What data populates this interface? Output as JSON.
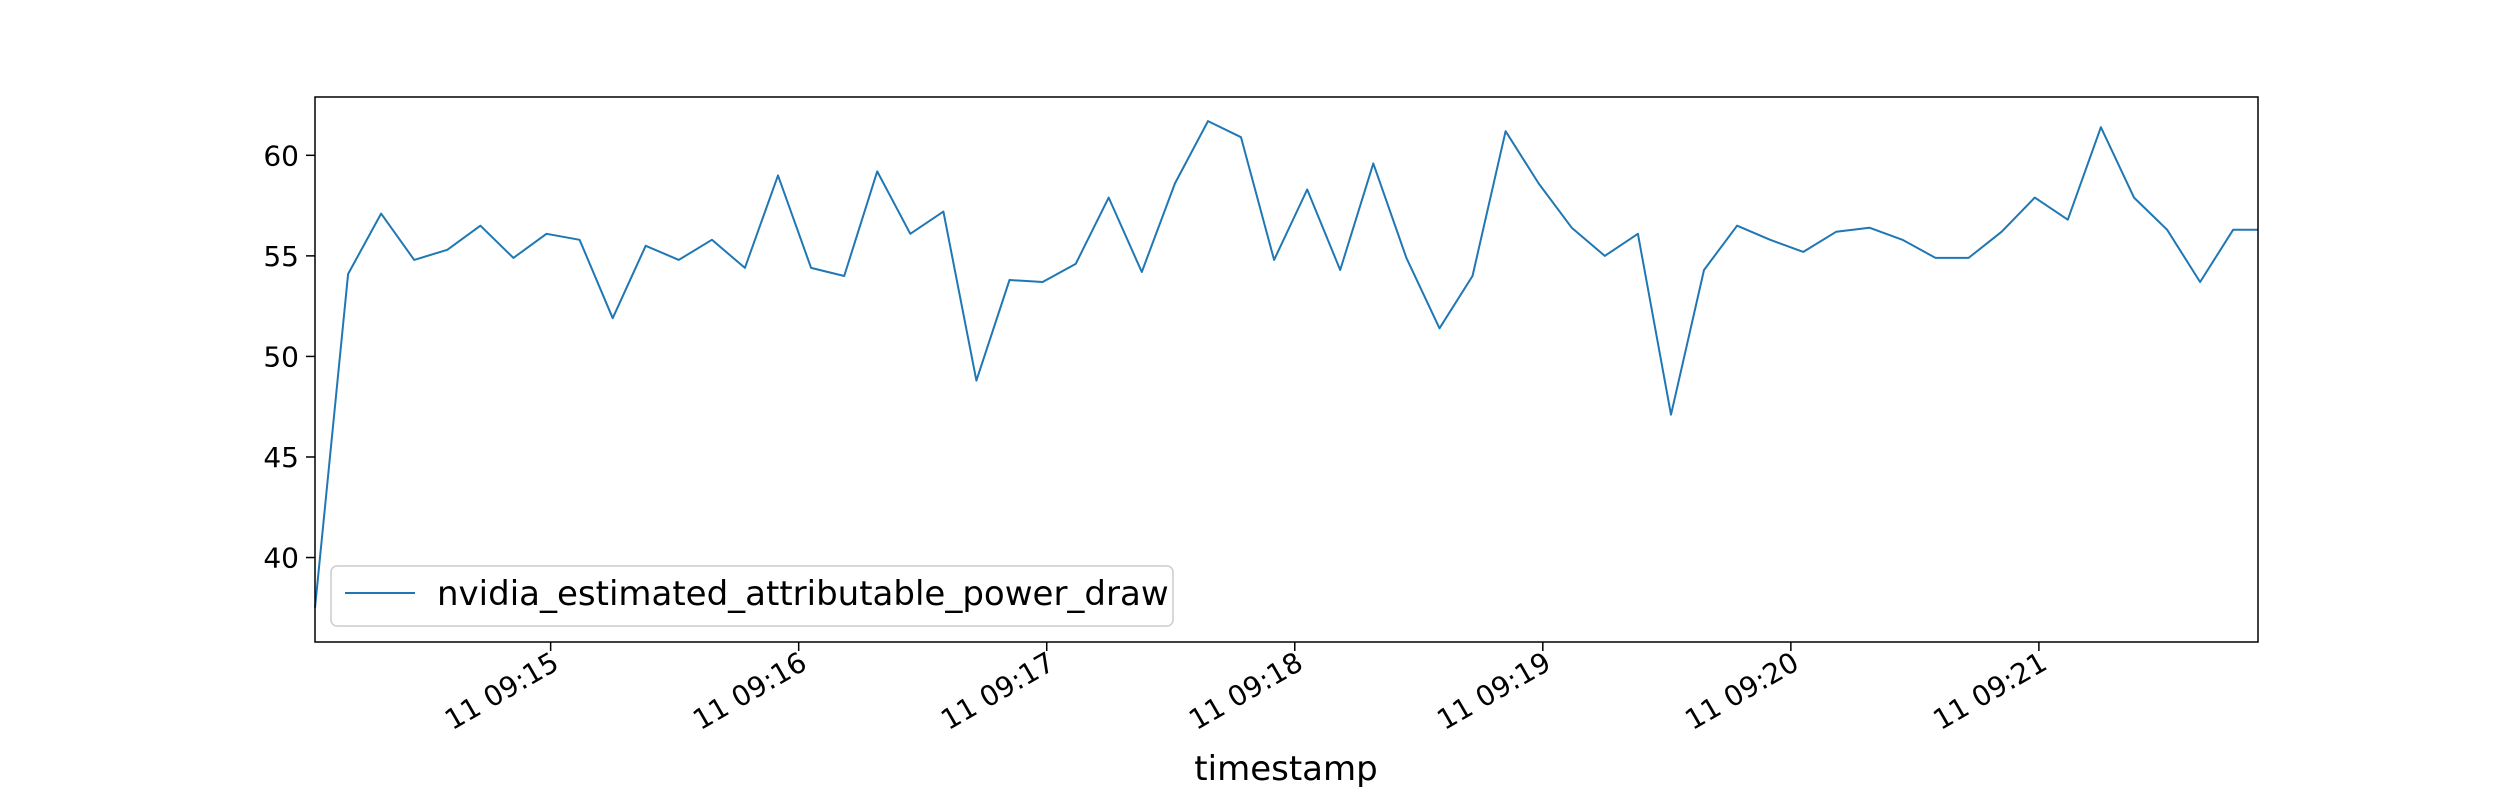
{
  "chart_data": {
    "type": "line",
    "xlabel": "timestamp",
    "ylabel": "",
    "title": "",
    "legend_position": "lower-left",
    "grid": false,
    "series_color": "#1f77b4",
    "x_tick_labels": [
      "11 09:15",
      "11 09:16",
      "11 09:17",
      "11 09:18",
      "11 09:19",
      "11 09:20",
      "11 09:21"
    ],
    "x_ticks": [
      "09:15:00",
      "09:16:00",
      "09:17:00",
      "09:18:00",
      "09:19:00",
      "09:20:00",
      "09:21:00"
    ],
    "y_ticks": [
      40,
      45,
      50,
      55,
      60
    ],
    "xlim": [
      "09:14:03",
      "09:21:53"
    ],
    "ylim": [
      35.8,
      62.9
    ],
    "series": [
      {
        "name": "nvidia_estimated_attributable_power_draw",
        "x": [
          "09:14:03",
          "09:14:11",
          "09:14:19",
          "09:14:27",
          "09:14:35",
          "09:14:43",
          "09:14:51",
          "09:14:59",
          "09:15:07",
          "09:15:15",
          "09:15:23",
          "09:15:31",
          "09:15:39",
          "09:15:47",
          "09:15:55",
          "09:16:03",
          "09:16:11",
          "09:16:19",
          "09:16:27",
          "09:16:35",
          "09:16:43",
          "09:16:51",
          "09:16:59",
          "09:17:07",
          "09:17:15",
          "09:17:23",
          "09:17:31",
          "09:17:39",
          "09:17:47",
          "09:17:55",
          "09:18:03",
          "09:18:11",
          "09:18:19",
          "09:18:27",
          "09:18:35",
          "09:18:43",
          "09:18:51",
          "09:18:59",
          "09:19:07",
          "09:19:15",
          "09:19:23",
          "09:19:31",
          "09:19:39",
          "09:19:47",
          "09:19:55",
          "09:20:03",
          "09:20:11",
          "09:20:19",
          "09:20:27",
          "09:20:35",
          "09:20:43",
          "09:20:51",
          "09:20:59",
          "09:21:07",
          "09:21:15",
          "09:21:23",
          "09:21:31",
          "09:21:39",
          "09:21:47",
          "09:21:53"
        ],
        "values": [
          37.5,
          54.1,
          57.1,
          54.8,
          55.3,
          56.5,
          54.9,
          56.1,
          55.8,
          51.9,
          55.5,
          54.8,
          55.8,
          54.4,
          59.0,
          54.4,
          54.0,
          59.2,
          56.1,
          57.2,
          48.8,
          53.8,
          53.7,
          54.6,
          57.9,
          54.2,
          58.6,
          61.7,
          60.9,
          54.8,
          58.3,
          54.3,
          59.6,
          54.9,
          51.4,
          54.0,
          61.2,
          58.6,
          56.4,
          55.0,
          56.1,
          47.1,
          54.3,
          56.5,
          55.8,
          55.2,
          56.2,
          56.4,
          55.8,
          54.9,
          54.9,
          56.2,
          57.9,
          56.8,
          61.4,
          57.9,
          56.3,
          53.7,
          56.3,
          56.3
        ]
      }
    ]
  }
}
